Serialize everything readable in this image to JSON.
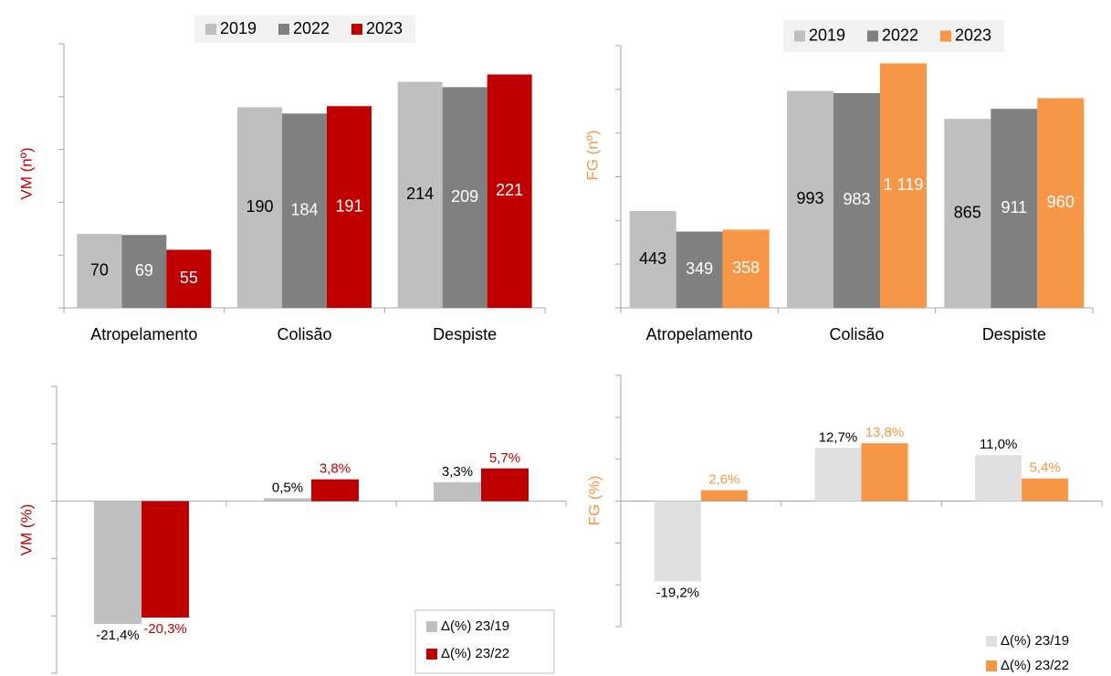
{
  "chart_data": [
    {
      "type": "bar",
      "ylabel": "VM (nº)",
      "ylabel_color": "#c00000",
      "categories": [
        "Atropelamento",
        "Colisão",
        "Despiste"
      ],
      "series": [
        {
          "name": "2019",
          "color": "#bfbfbf",
          "label_color": "#000000",
          "values": [
            70,
            190,
            214
          ]
        },
        {
          "name": "2022",
          "color": "#808080",
          "label_color": "#ffffff",
          "values": [
            69,
            184,
            209
          ]
        },
        {
          "name": "2023",
          "color": "#c00000",
          "label_color": "#ffffff",
          "values": [
            55,
            191,
            221
          ]
        }
      ],
      "ylim": [
        0,
        250
      ],
      "yticks": [
        0,
        50,
        100,
        150,
        200,
        250
      ],
      "legend": "top"
    },
    {
      "type": "bar",
      "ylabel": "FG (nº)",
      "ylabel_color": "#f79646",
      "categories": [
        "Atropelamento",
        "Colisão",
        "Despiste"
      ],
      "series": [
        {
          "name": "2019",
          "color": "#bfbfbf",
          "label_color": "#000000",
          "values": [
            443,
            993,
            865
          ]
        },
        {
          "name": "2022",
          "color": "#808080",
          "label_color": "#ffffff",
          "values": [
            349,
            983,
            911
          ]
        },
        {
          "name": "2023",
          "color": "#f79646",
          "label_color": "#ffffff",
          "values": [
            358,
            1119,
            960
          ],
          "value_labels": [
            "358",
            "1 119",
            "960"
          ]
        }
      ],
      "ylim": [
        0,
        1200
      ],
      "yticks": [
        0,
        200,
        400,
        600,
        800,
        1000,
        1200
      ],
      "legend": "top"
    },
    {
      "type": "bar",
      "ylabel": "VM (%)",
      "ylabel_color": "#c00000",
      "categories": [
        null,
        null,
        null
      ],
      "series": [
        {
          "name": "Δ(%) 23/19",
          "color": "#bfbfbf",
          "label_color": "#000000",
          "values": [
            -21.4,
            0.5,
            3.3
          ],
          "value_labels": [
            "-21,4%",
            "0,5%",
            "3,3%"
          ]
        },
        {
          "name": "Δ(%) 23/22",
          "color": "#c00000",
          "label_color": "#c00000",
          "values": [
            -20.3,
            3.8,
            5.7
          ],
          "value_labels": [
            "-20,3%",
            "3,8%",
            "5,7%"
          ]
        }
      ],
      "ylim": [
        -30,
        20
      ],
      "yticks": [
        -30,
        -20,
        -10,
        0,
        10,
        20
      ],
      "legend": "bottom-right"
    },
    {
      "type": "bar",
      "ylabel": "FG (%)",
      "ylabel_color": "#f79646",
      "categories": [
        null,
        null,
        null
      ],
      "series": [
        {
          "name": "Δ(%) 23/19",
          "color": "#e0e0e0",
          "label_color": "#000000",
          "values": [
            -19.2,
            12.7,
            11.0
          ],
          "value_labels": [
            "-19,2%",
            "12,7%",
            "11,0%"
          ]
        },
        {
          "name": "Δ(%) 23/22",
          "color": "#f79646",
          "label_color": "#f79646",
          "values": [
            2.6,
            13.8,
            5.4
          ],
          "value_labels": [
            "2,6%",
            "13,8%",
            "5,4%"
          ]
        }
      ],
      "ylim": [
        -30,
        30
      ],
      "yticks": [
        -30,
        -20,
        -10,
        0,
        10,
        20,
        30
      ],
      "legend": "bottom-right"
    }
  ]
}
